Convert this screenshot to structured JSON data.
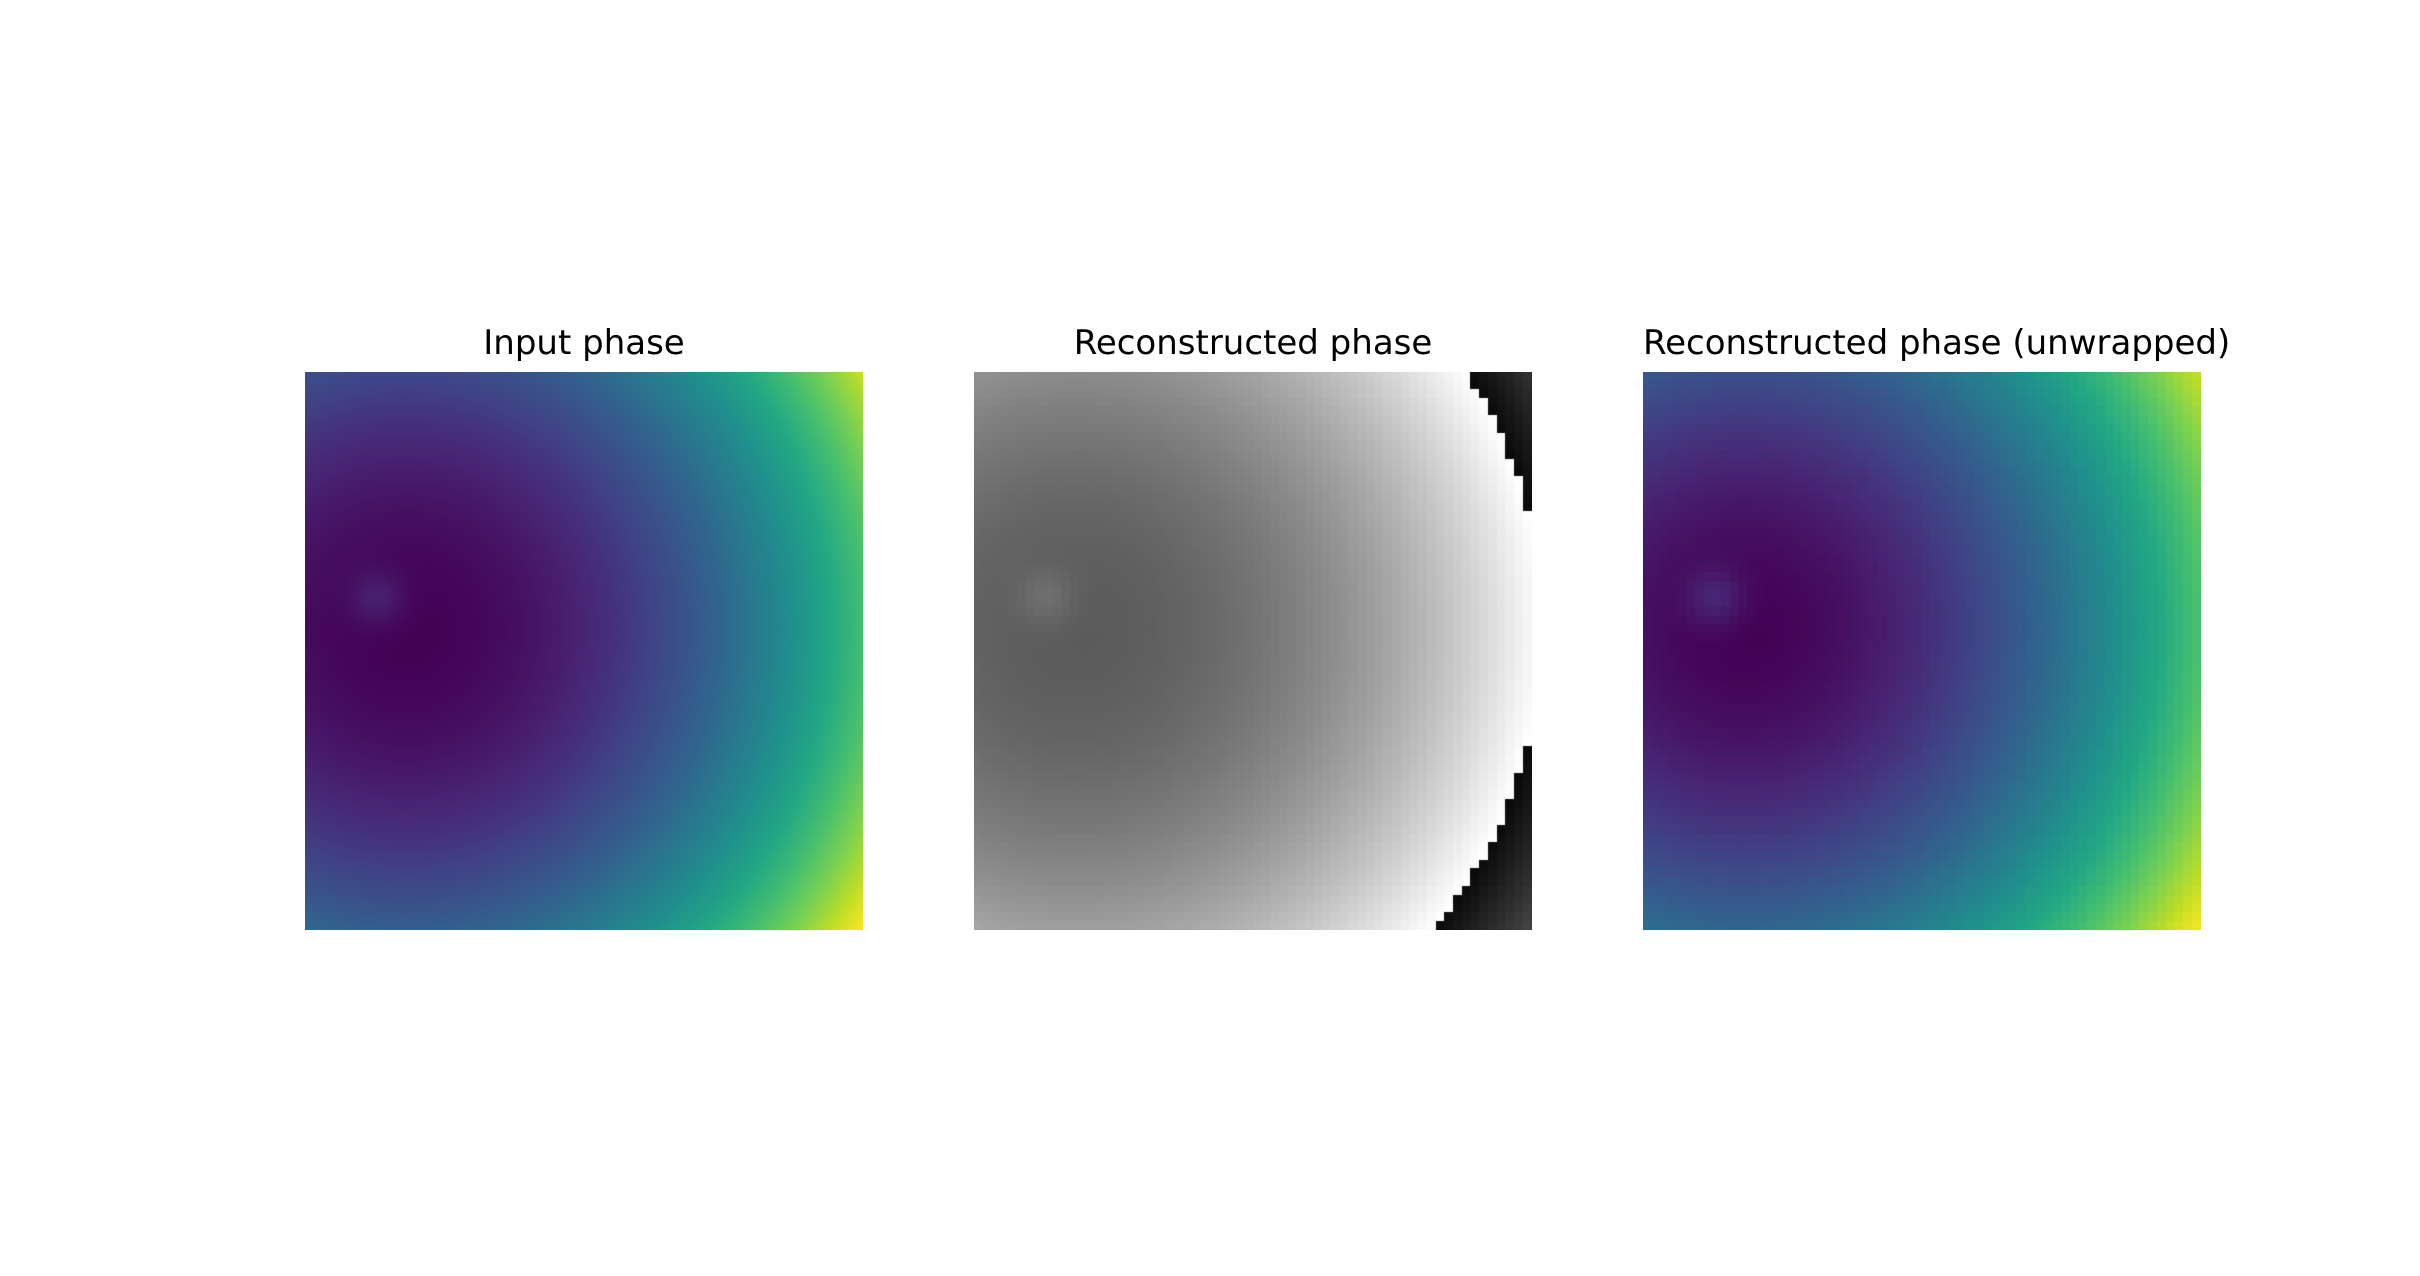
{
  "figure": {
    "panels": [
      {
        "title": "Input phase",
        "colormap": "viridis",
        "kind": "input"
      },
      {
        "title": "Reconstructed phase",
        "colormap": "gray",
        "kind": "wrapped"
      },
      {
        "title": "Reconstructed phase (unwrapped)",
        "colormap": "viridis",
        "kind": "unwrapped"
      }
    ]
  }
}
